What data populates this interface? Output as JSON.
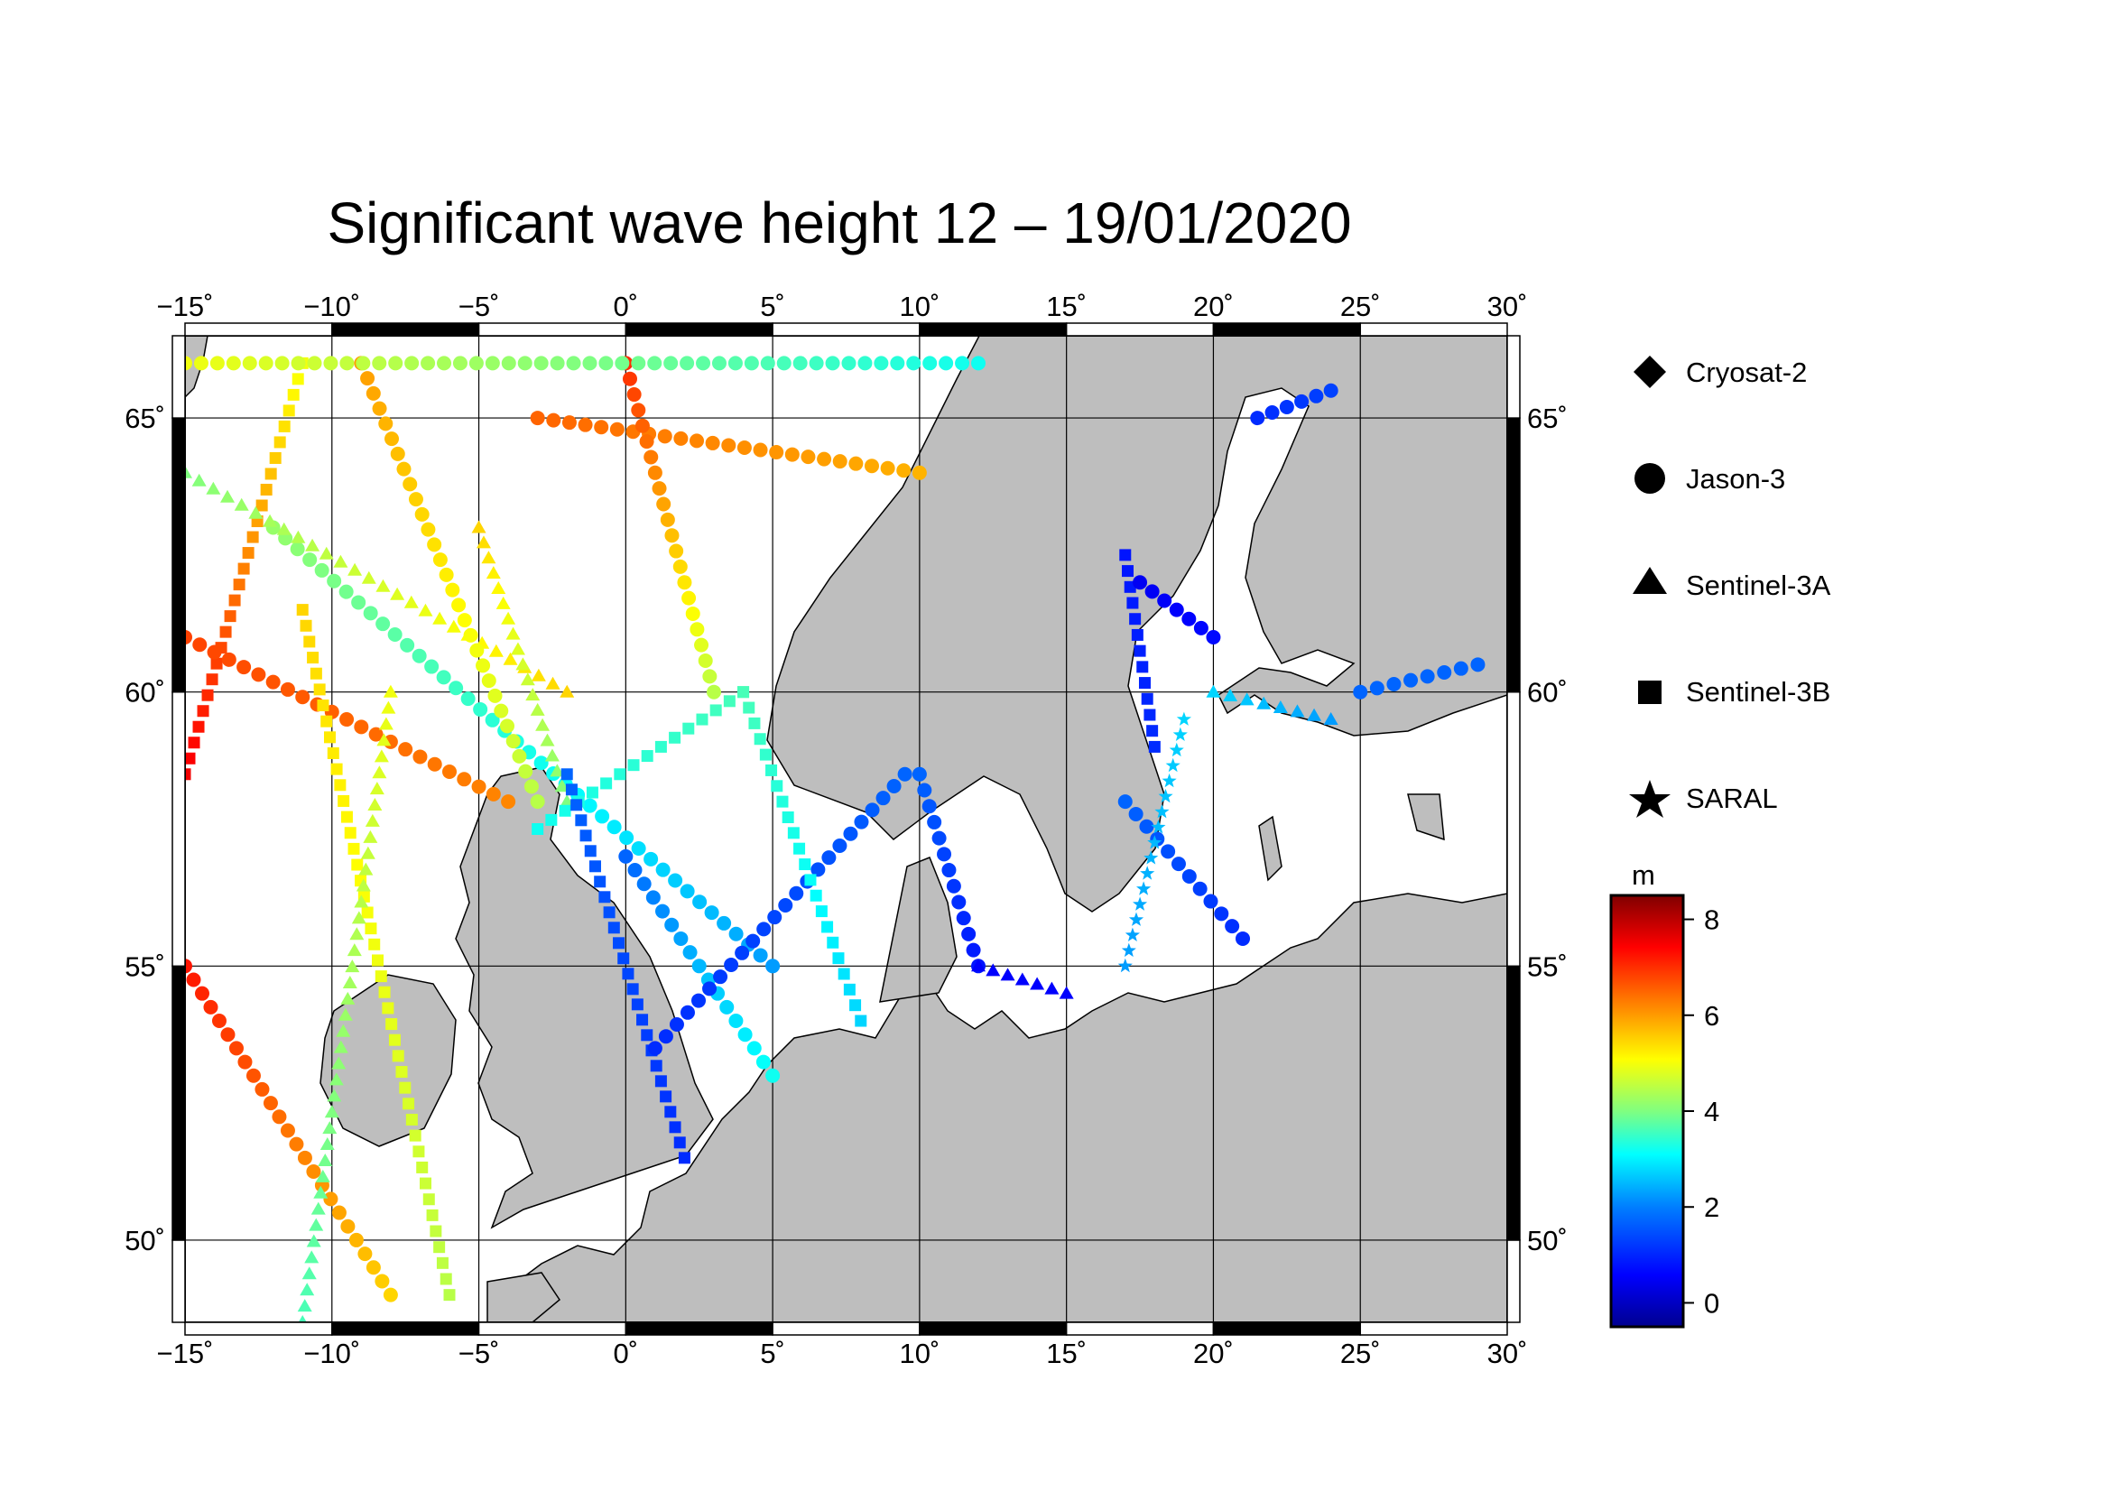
{
  "title": "Significant wave height 12 – 19/01/2020",
  "map": {
    "lon_range": [
      -15,
      30
    ],
    "lat_range": [
      48.5,
      66.5
    ],
    "lon_ticks": [
      -15,
      -10,
      -5,
      0,
      5,
      10,
      15,
      20,
      25,
      30
    ],
    "lat_ticks": [
      50,
      55,
      60,
      65
    ],
    "lon_tick_labels": [
      "−15˚",
      "−10˚",
      "−5˚",
      "0˚",
      "5˚",
      "10˚",
      "15˚",
      "20˚",
      "25˚",
      "30˚"
    ],
    "lat_tick_labels": [
      "50˚",
      "55˚",
      "60˚",
      "65˚"
    ],
    "grid": true,
    "land_color": "#bebebe",
    "sea_color": "#ffffff"
  },
  "legend": {
    "satellites": [
      {
        "name": "Cryosat-2",
        "symbol": "diamond"
      },
      {
        "name": "Jason-3",
        "symbol": "circle"
      },
      {
        "name": "Sentinel-3A",
        "symbol": "triangle"
      },
      {
        "name": "Sentinel-3B",
        "symbol": "square"
      },
      {
        "name": "SARAL",
        "symbol": "star"
      }
    ]
  },
  "colorbar": {
    "unit": "m",
    "range": [
      -0.5,
      8.5
    ],
    "ticks": [
      0,
      2,
      4,
      6,
      8
    ],
    "tick_labels": [
      "0",
      "2",
      "4",
      "6",
      "8"
    ],
    "colormap": [
      "#00008f",
      "#0000ff",
      "#0080ff",
      "#00ffff",
      "#80ff80",
      "#ffff00",
      "#ff8000",
      "#ff0000",
      "#800000"
    ]
  },
  "chart_data": {
    "type": "scatter",
    "x_label": "",
    "y_label": "",
    "value_unit": "m",
    "tracks": [
      {
        "satellite": "Jason-3",
        "from": [
          -15,
          55
        ],
        "to": [
          -8,
          49
        ],
        "swh": [
          7.2,
          5.5
        ]
      },
      {
        "satellite": "Sentinel-3B",
        "from": [
          -15,
          58.5
        ],
        "to": [
          -11,
          66
        ],
        "swh": [
          7.5,
          5.0
        ]
      },
      {
        "satellite": "Jason-3",
        "from": [
          -15,
          61
        ],
        "to": [
          -4,
          58
        ],
        "swh": [
          6.8,
          6.2
        ]
      },
      {
        "satellite": "Jason-3",
        "from": [
          -12,
          63
        ],
        "to": [
          5,
          55
        ],
        "swh": [
          4.2,
          2.0
        ]
      },
      {
        "satellite": "Sentinel-3A",
        "from": [
          -15,
          64
        ],
        "to": [
          -2,
          60
        ],
        "swh": [
          4.0,
          5.5
        ]
      },
      {
        "satellite": "Jason-3",
        "from": [
          -9,
          66
        ],
        "to": [
          -3,
          58
        ],
        "swh": [
          6.0,
          4.5
        ]
      },
      {
        "satellite": "Jason-3",
        "from": [
          -3,
          65
        ],
        "to": [
          10,
          64
        ],
        "swh": [
          6.5,
          5.8
        ]
      },
      {
        "satellite": "Jason-3",
        "from": [
          0,
          66
        ],
        "to": [
          3,
          60
        ],
        "swh": [
          7.0,
          4.5
        ]
      },
      {
        "satellite": "Jason-3",
        "from": [
          -15,
          66
        ],
        "to": [
          12,
          66
        ],
        "swh": [
          5.0,
          3.0
        ]
      },
      {
        "satellite": "Sentinel-3B",
        "from": [
          -11,
          61.5
        ],
        "to": [
          -6,
          49
        ],
        "swh": [
          5.5,
          4.5
        ]
      },
      {
        "satellite": "Sentinel-3A",
        "from": [
          -8,
          60
        ],
        "to": [
          -11,
          48.5
        ],
        "swh": [
          5.0,
          3.5
        ]
      },
      {
        "satellite": "Sentinel-3A",
        "from": [
          -5,
          63
        ],
        "to": [
          -2,
          58
        ],
        "swh": [
          5.5,
          4.0
        ]
      },
      {
        "satellite": "Sentinel-3B",
        "from": [
          4,
          60
        ],
        "to": [
          -3,
          57.5
        ],
        "swh": [
          3.5,
          3.0
        ]
      },
      {
        "satellite": "Sentinel-3B",
        "from": [
          -2,
          58.5
        ],
        "to": [
          2,
          51.5
        ],
        "swh": [
          1.5,
          1.0
        ]
      },
      {
        "satellite": "Jason-3",
        "from": [
          0,
          57
        ],
        "to": [
          5,
          53
        ],
        "swh": [
          1.5,
          3.0
        ]
      },
      {
        "satellite": "Jason-3",
        "from": [
          1,
          53.5
        ],
        "to": [
          9.5,
          58.5
        ],
        "swh": [
          1.0,
          1.5
        ]
      },
      {
        "satellite": "Sentinel-3B",
        "from": [
          4,
          60
        ],
        "to": [
          8,
          54
        ],
        "swh": [
          3.5,
          2.5
        ]
      },
      {
        "satellite": "Jason-3",
        "from": [
          10,
          58.5
        ],
        "to": [
          12,
          55
        ],
        "swh": [
          1.5,
          0.8
        ]
      },
      {
        "satellite": "Sentinel-3A",
        "from": [
          12,
          55
        ],
        "to": [
          15,
          54.5
        ],
        "swh": [
          0.6,
          0.6
        ]
      },
      {
        "satellite": "Sentinel-3B",
        "from": [
          17,
          62.5
        ],
        "to": [
          18,
          59
        ],
        "swh": [
          0.8,
          1.0
        ]
      },
      {
        "satellite": "Jason-3",
        "from": [
          17.5,
          62
        ],
        "to": [
          20,
          61
        ],
        "swh": [
          0.5,
          0.7
        ]
      },
      {
        "satellite": "Jason-3",
        "from": [
          21.5,
          65
        ],
        "to": [
          24,
          65.5
        ],
        "swh": [
          1.0,
          1.2
        ]
      },
      {
        "satellite": "Sentinel-3A",
        "from": [
          20,
          60
        ],
        "to": [
          24,
          59.5
        ],
        "swh": [
          2.5,
          2.0
        ]
      },
      {
        "satellite": "Jason-3",
        "from": [
          25,
          60
        ],
        "to": [
          29,
          60.5
        ],
        "swh": [
          1.5,
          1.5
        ]
      },
      {
        "satellite": "Jason-3",
        "from": [
          17,
          58
        ],
        "to": [
          21,
          55.5
        ],
        "swh": [
          1.5,
          1.0
        ]
      },
      {
        "satellite": "SARAL",
        "from": [
          19,
          59.5
        ],
        "to": [
          17,
          55
        ],
        "swh": [
          2.5,
          2.0
        ]
      }
    ]
  }
}
